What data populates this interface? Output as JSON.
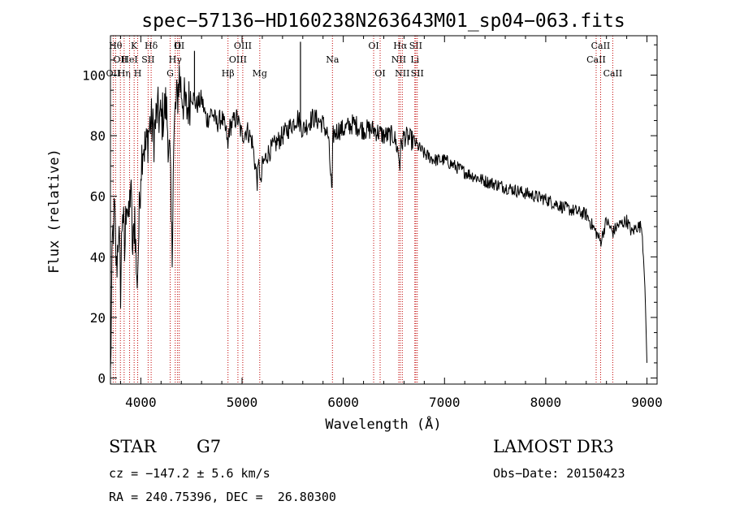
{
  "chart_data": {
    "type": "line",
    "title": "spec−57136−HD160238N263643M01_sp04−063.fits",
    "xlabel": "Wavelength (Å)",
    "ylabel": "Flux (relative)",
    "xlim": [
      3700,
      9100
    ],
    "ylim": [
      -2,
      113
    ],
    "grid": false,
    "xticks": [
      4000,
      5000,
      6000,
      7000,
      8000,
      9000
    ],
    "yticks": [
      0,
      20,
      40,
      60,
      80,
      100
    ],
    "series": [
      {
        "name": "flux",
        "x": [
          3700,
          3720,
          3740,
          3760,
          3780,
          3800,
          3820,
          3840,
          3860,
          3880,
          3900,
          3920,
          3940,
          3960,
          3970,
          3980,
          4000,
          4020,
          4050,
          4080,
          4100,
          4130,
          4160,
          4200,
          4250,
          4290,
          4300,
          4310,
          4320,
          4340,
          4360,
          4380,
          4400,
          4450,
          4500,
          4550,
          4600,
          4650,
          4700,
          4750,
          4800,
          4850,
          4860,
          4870,
          4900,
          4950,
          5000,
          5050,
          5100,
          5150,
          5170,
          5183,
          5200,
          5250,
          5300,
          5400,
          5500,
          5550,
          5600,
          5650,
          5700,
          5800,
          5850,
          5890,
          5893,
          5896,
          5950,
          6000,
          6100,
          6200,
          6300,
          6400,
          6500,
          6540,
          6560,
          6563,
          6570,
          6600,
          6700,
          6800,
          6900,
          7000,
          7200,
          7400,
          7600,
          7800,
          8000,
          8200,
          8400,
          8498,
          8542,
          8600,
          8662,
          8700,
          8800,
          8850,
          8900,
          8950,
          8980,
          9000
        ],
        "values": [
          0,
          45,
          55,
          35,
          50,
          30,
          58,
          40,
          62,
          50,
          65,
          40,
          55,
          30,
          38,
          48,
          70,
          78,
          75,
          82,
          85,
          80,
          88,
          85,
          90,
          70,
          50,
          40,
          72,
          88,
          92,
          100,
          95,
          88,
          94,
          90,
          92,
          85,
          88,
          84,
          86,
          80,
          75,
          82,
          84,
          86,
          80,
          82,
          78,
          65,
          72,
          62,
          70,
          74,
          76,
          80,
          84,
          86,
          82,
          84,
          86,
          84,
          80,
          60,
          68,
          80,
          82,
          82,
          84,
          82,
          82,
          80,
          80,
          75,
          70,
          80,
          76,
          80,
          78,
          74,
          72,
          72,
          68,
          65,
          63,
          61,
          59,
          56,
          54,
          48,
          45,
          52,
          48,
          50,
          52,
          48,
          50,
          50,
          30,
          5
        ]
      }
    ],
    "spikes": [
      {
        "x": 4530,
        "y": 108
      },
      {
        "x": 5577,
        "y": 111
      }
    ],
    "emission_lines": [
      {
        "wl": 3727,
        "labels": [
          {
            "text": "OII",
            "row": 3
          }
        ]
      },
      {
        "wl": 3750,
        "labels": [
          {
            "text": "Hθ",
            "row": 1
          }
        ]
      },
      {
        "wl": 3798,
        "labels": [
          {
            "text": "OII",
            "row": 2
          }
        ]
      },
      {
        "wl": 3835,
        "labels": [
          {
            "text": "Hη",
            "row": 3
          }
        ]
      },
      {
        "wl": 3889,
        "labels": [
          {
            "text": "HeI",
            "row": 2
          }
        ]
      },
      {
        "wl": 3934,
        "labels": [
          {
            "text": "K",
            "row": 1
          }
        ]
      },
      {
        "wl": 3969,
        "labels": [
          {
            "text": "H",
            "row": 3
          }
        ]
      },
      {
        "wl": 4072,
        "labels": [
          {
            "text": "SII",
            "row": 2
          }
        ]
      },
      {
        "wl": 4102,
        "labels": [
          {
            "text": "Hδ",
            "row": 1
          }
        ]
      },
      {
        "wl": 4290,
        "labels": [
          {
            "text": "G",
            "row": 3
          }
        ]
      },
      {
        "wl": 4340,
        "labels": [
          {
            "text": "Hγ",
            "row": 2
          }
        ]
      },
      {
        "wl": 4363,
        "labels": [
          {
            "text": "O",
            "row": 1
          }
        ]
      },
      {
        "wl": 4380,
        "labels": [
          {
            "text": "III",
            "row": 1
          }
        ]
      },
      {
        "wl": 4861,
        "labels": [
          {
            "text": "Hβ",
            "row": 3
          }
        ]
      },
      {
        "wl": 4959,
        "labels": [
          {
            "text": "OIII",
            "row": 2
          }
        ]
      },
      {
        "wl": 5007,
        "labels": [
          {
            "text": "OIII",
            "row": 1
          }
        ]
      },
      {
        "wl": 5175,
        "labels": [
          {
            "text": "Mg",
            "row": 3
          }
        ]
      },
      {
        "wl": 5893,
        "labels": [
          {
            "text": "Na",
            "row": 2
          }
        ]
      },
      {
        "wl": 6300,
        "labels": [
          {
            "text": "OI",
            "row": 1
          }
        ]
      },
      {
        "wl": 6364,
        "labels": [
          {
            "text": "OI",
            "row": 3
          }
        ]
      },
      {
        "wl": 6548,
        "labels": [
          {
            "text": "NII",
            "row": 2
          }
        ]
      },
      {
        "wl": 6563,
        "labels": [
          {
            "text": "Hα",
            "row": 1
          }
        ]
      },
      {
        "wl": 6583,
        "labels": [
          {
            "text": "NII",
            "row": 3
          }
        ]
      },
      {
        "wl": 6707,
        "labels": [
          {
            "text": "Li",
            "row": 2
          }
        ]
      },
      {
        "wl": 6716,
        "labels": [
          {
            "text": "SII",
            "row": 1
          }
        ]
      },
      {
        "wl": 6731,
        "labels": [
          {
            "text": "SII",
            "row": 3
          }
        ]
      },
      {
        "wl": 8498,
        "labels": [
          {
            "text": "CaII",
            "row": 2
          }
        ]
      },
      {
        "wl": 8542,
        "labels": [
          {
            "text": "CaII",
            "row": 1
          }
        ]
      },
      {
        "wl": 8662,
        "labels": [
          {
            "text": "CaII",
            "row": 3
          }
        ]
      }
    ]
  },
  "info": {
    "class": "STAR",
    "subclass": "G7",
    "survey": "LAMOST DR3",
    "cz": "cz = −147.2 ± 5.6 km/s",
    "obs_date": "Obs−Date: 20150423",
    "coords": "RA = 240.75396, DEC =  26.80300"
  },
  "colors": {
    "spectrum": "#000000",
    "line_markers": "#c00000",
    "axes": "#000000"
  }
}
